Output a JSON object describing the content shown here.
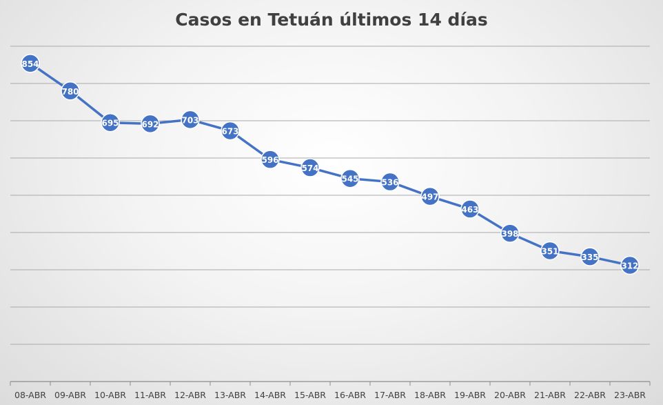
{
  "chart_data": {
    "type": "line",
    "title": "Casos en Tetuán últimos 14 días",
    "categories": [
      "08-ABR",
      "09-ABR",
      "10-ABR",
      "11-ABR",
      "12-ABR",
      "13-ABR",
      "14-ABR",
      "15-ABR",
      "16-ABR",
      "17-ABR",
      "18-ABR",
      "19-ABR",
      "20-ABR",
      "21-ABR",
      "22-ABR",
      "23-ABR"
    ],
    "series": [
      {
        "values": [
          854,
          780,
          695,
          692,
          703,
          673,
          596,
          574,
          545,
          536,
          497,
          463,
          398,
          351,
          335,
          312
        ]
      }
    ],
    "ylim": [
      0,
      900
    ],
    "y_gridline_step": 100,
    "grid": true,
    "legend": "none",
    "data_labels": true,
    "colors": {
      "series": "#4472c4",
      "grid": "#a9a9a9",
      "label_text": "#ffffff"
    }
  }
}
